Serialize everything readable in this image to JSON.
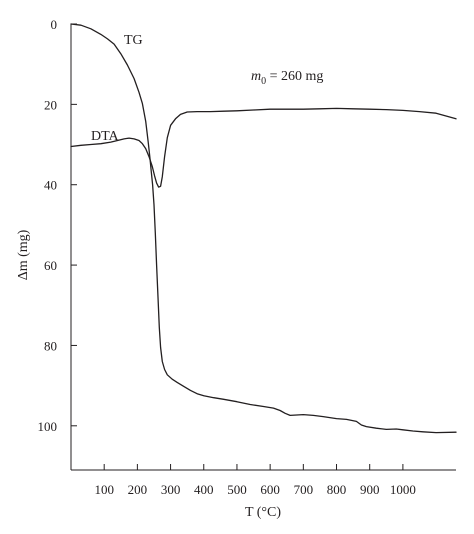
{
  "chart_data": {
    "type": "line",
    "title": "",
    "xlabel": "T (°C)",
    "ylabel": "Δm (mg)",
    "xlim": [
      0,
      1160
    ],
    "ylim": [
      0,
      111
    ],
    "y_inverted": true,
    "x_ticks": [
      "100",
      "200",
      "300",
      "400",
      "500",
      "600",
      "700",
      "800",
      "900",
      "1000"
    ],
    "y_ticks": [
      "0",
      "20",
      "40",
      "60",
      "80",
      "100"
    ],
    "grid": false,
    "annotation": {
      "label": "m",
      "subscript": "0",
      "text": " = 260 mg"
    },
    "series": [
      {
        "name": "TG",
        "color": "#231f20",
        "points": [
          [
            0,
            0
          ],
          [
            30,
            0.3
          ],
          [
            60,
            1.2
          ],
          [
            90,
            2.6
          ],
          [
            110,
            3.7
          ],
          [
            130,
            5.0
          ],
          [
            150,
            7.4
          ],
          [
            170,
            10.2
          ],
          [
            190,
            13.6
          ],
          [
            205,
            17.0
          ],
          [
            215,
            19.8
          ],
          [
            225,
            24.2
          ],
          [
            233,
            29.6
          ],
          [
            238,
            33.5
          ],
          [
            242,
            36.8
          ],
          [
            246,
            40.0
          ],
          [
            250,
            45.0
          ],
          [
            254,
            52.0
          ],
          [
            258,
            60.0
          ],
          [
            262,
            68.0
          ],
          [
            266,
            75.5
          ],
          [
            270,
            80.5
          ],
          [
            275,
            84.0
          ],
          [
            282,
            86.0
          ],
          [
            290,
            87.3
          ],
          [
            305,
            88.4
          ],
          [
            320,
            89.2
          ],
          [
            340,
            90.2
          ],
          [
            360,
            91.2
          ],
          [
            380,
            92.0
          ],
          [
            400,
            92.5
          ],
          [
            430,
            93.0
          ],
          [
            460,
            93.4
          ],
          [
            500,
            94.0
          ],
          [
            540,
            94.7
          ],
          [
            580,
            95.2
          ],
          [
            610,
            95.6
          ],
          [
            630,
            96.2
          ],
          [
            645,
            96.9
          ],
          [
            660,
            97.4
          ],
          [
            680,
            97.3
          ],
          [
            700,
            97.2
          ],
          [
            730,
            97.4
          ],
          [
            760,
            97.7
          ],
          [
            800,
            98.2
          ],
          [
            830,
            98.4
          ],
          [
            860,
            98.9
          ],
          [
            875,
            99.8
          ],
          [
            890,
            100.2
          ],
          [
            920,
            100.6
          ],
          [
            950,
            100.9
          ],
          [
            980,
            100.8
          ],
          [
            1000,
            101.0
          ],
          [
            1030,
            101.3
          ],
          [
            1060,
            101.5
          ],
          [
            1100,
            101.7
          ],
          [
            1160,
            101.6
          ]
        ]
      },
      {
        "name": "DTA",
        "color": "#231f20",
        "points": [
          [
            0,
            30.5
          ],
          [
            30,
            30.2
          ],
          [
            60,
            30.0
          ],
          [
            90,
            29.8
          ],
          [
            120,
            29.4
          ],
          [
            140,
            29.0
          ],
          [
            160,
            28.6
          ],
          [
            175,
            28.4
          ],
          [
            190,
            28.6
          ],
          [
            205,
            29.0
          ],
          [
            215,
            29.8
          ],
          [
            225,
            31.0
          ],
          [
            235,
            33.0
          ],
          [
            245,
            35.5
          ],
          [
            252,
            37.8
          ],
          [
            258,
            39.6
          ],
          [
            264,
            40.6
          ],
          [
            270,
            40.4
          ],
          [
            275,
            38.0
          ],
          [
            282,
            33.0
          ],
          [
            290,
            28.3
          ],
          [
            300,
            25.2
          ],
          [
            315,
            23.6
          ],
          [
            330,
            22.5
          ],
          [
            350,
            21.9
          ],
          [
            380,
            21.8
          ],
          [
            420,
            21.8
          ],
          [
            460,
            21.7
          ],
          [
            500,
            21.6
          ],
          [
            550,
            21.4
          ],
          [
            600,
            21.2
          ],
          [
            650,
            21.2
          ],
          [
            700,
            21.2
          ],
          [
            750,
            21.1
          ],
          [
            800,
            21.0
          ],
          [
            850,
            21.1
          ],
          [
            900,
            21.2
          ],
          [
            950,
            21.3
          ],
          [
            1000,
            21.5
          ],
          [
            1050,
            21.8
          ],
          [
            1100,
            22.2
          ],
          [
            1160,
            23.6
          ]
        ]
      }
    ],
    "curve_labels": [
      {
        "series": "TG",
        "text": "TG"
      },
      {
        "series": "DTA",
        "text": "DTA"
      }
    ]
  }
}
